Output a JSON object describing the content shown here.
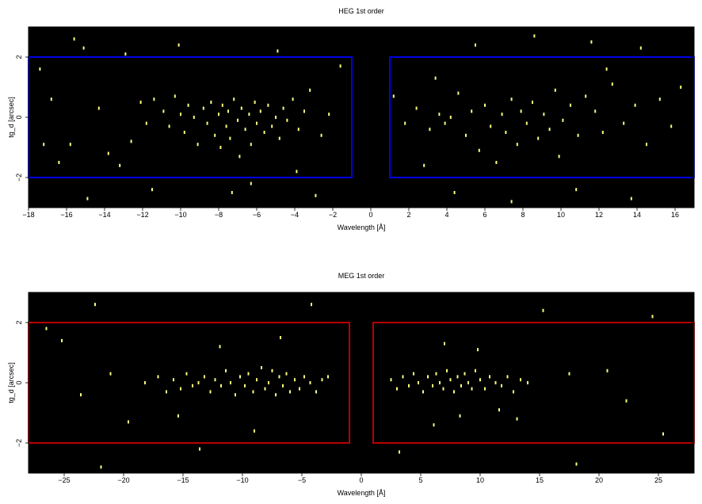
{
  "chart_data": [
    {
      "type": "scatter",
      "title": "HEG 1st order",
      "xlabel": "Wavelength [Å]",
      "ylabel": "tg_d [arcsec]",
      "xlim": [
        -18,
        17
      ],
      "ylim": [
        -3,
        3
      ],
      "xticks": [
        -18,
        -16,
        -14,
        -12,
        -10,
        -8,
        -6,
        -4,
        -2,
        0,
        2,
        4,
        6,
        8,
        10,
        12,
        14,
        16
      ],
      "xtick_labels": [
        "−18",
        "−16",
        "−14",
        "−12",
        "−10",
        "−8",
        "−6",
        "−4",
        "−2",
        "0",
        "2",
        "4",
        "6",
        "8",
        "10",
        "12",
        "14",
        "16"
      ],
      "yticks": [
        -2,
        0,
        2
      ],
      "ytick_labels": [
        "−2",
        "0",
        "2"
      ],
      "background": "#000000",
      "point_color": "#ffff80",
      "regions": [
        {
          "x": [
            -18,
            -1
          ],
          "y": [
            -2,
            2
          ],
          "color": "#0000ff"
        },
        {
          "x": [
            1,
            17
          ],
          "y": [
            -2,
            2
          ],
          "color": "#0000ff"
        }
      ],
      "points": [
        [
          -17.4,
          1.6
        ],
        [
          -16.8,
          0.6
        ],
        [
          -16.4,
          -1.5
        ],
        [
          -15.8,
          -0.9
        ],
        [
          -15.1,
          2.3
        ],
        [
          -14.3,
          0.3
        ],
        [
          -13.8,
          -1.2
        ],
        [
          -13.2,
          -1.6
        ],
        [
          -12.6,
          -0.8
        ],
        [
          -12.1,
          0.5
        ],
        [
          -11.8,
          -0.2
        ],
        [
          -11.4,
          0.6
        ],
        [
          -10.9,
          0.2
        ],
        [
          -10.6,
          -0.3
        ],
        [
          -10.3,
          0.7
        ],
        [
          -10.0,
          0.1
        ],
        [
          -9.8,
          -0.5
        ],
        [
          -9.6,
          0.4
        ],
        [
          -9.3,
          0.0
        ],
        [
          -9.1,
          -0.9
        ],
        [
          -8.8,
          0.3
        ],
        [
          -8.6,
          -0.2
        ],
        [
          -8.4,
          0.5
        ],
        [
          -8.2,
          -0.6
        ],
        [
          -8.0,
          0.1
        ],
        [
          -7.9,
          -1.0
        ],
        [
          -7.8,
          0.4
        ],
        [
          -7.6,
          -0.3
        ],
        [
          -7.5,
          0.2
        ],
        [
          -7.4,
          -0.7
        ],
        [
          -7.2,
          0.6
        ],
        [
          -7.0,
          -0.1
        ],
        [
          -6.9,
          -1.3
        ],
        [
          -6.8,
          0.3
        ],
        [
          -6.6,
          -0.4
        ],
        [
          -6.4,
          0.1
        ],
        [
          -6.3,
          -0.9
        ],
        [
          -6.1,
          0.5
        ],
        [
          -6.0,
          -0.2
        ],
        [
          -5.8,
          0.2
        ],
        [
          -5.6,
          -0.5
        ],
        [
          -5.4,
          0.4
        ],
        [
          -5.2,
          -0.3
        ],
        [
          -5.0,
          0.0
        ],
        [
          -4.8,
          -0.7
        ],
        [
          -4.6,
          0.3
        ],
        [
          -4.4,
          -0.1
        ],
        [
          -4.1,
          0.6
        ],
        [
          -3.8,
          -0.4
        ],
        [
          -3.5,
          0.2
        ],
        [
          -3.2,
          0.9
        ],
        [
          -2.6,
          -0.6
        ],
        [
          -2.2,
          0.1
        ],
        [
          -1.6,
          1.7
        ],
        [
          -12.9,
          2.1
        ],
        [
          -10.1,
          2.4
        ],
        [
          -7.3,
          -2.5
        ],
        [
          -4.9,
          2.2
        ],
        [
          -2.9,
          -2.6
        ],
        [
          -14.9,
          -2.7
        ],
        [
          -6.3,
          -2.2
        ],
        [
          -11.5,
          -2.4
        ],
        [
          -17.2,
          -0.9
        ],
        [
          -15.6,
          2.6
        ],
        [
          -3.9,
          -1.8
        ],
        [
          1.2,
          0.7
        ],
        [
          1.8,
          -0.2
        ],
        [
          2.4,
          0.3
        ],
        [
          3.1,
          -0.4
        ],
        [
          3.6,
          0.1
        ],
        [
          3.9,
          -0.2
        ],
        [
          4.2,
          0.0
        ],
        [
          4.6,
          0.8
        ],
        [
          5.0,
          -0.6
        ],
        [
          5.3,
          0.2
        ],
        [
          5.7,
          -1.1
        ],
        [
          6.0,
          0.4
        ],
        [
          6.3,
          -0.3
        ],
        [
          6.6,
          -1.5
        ],
        [
          6.9,
          0.1
        ],
        [
          7.1,
          -0.5
        ],
        [
          7.4,
          0.6
        ],
        [
          7.7,
          -0.9
        ],
        [
          7.9,
          0.2
        ],
        [
          8.2,
          -0.2
        ],
        [
          8.5,
          0.5
        ],
        [
          8.8,
          -0.7
        ],
        [
          9.1,
          0.1
        ],
        [
          9.4,
          -0.4
        ],
        [
          9.7,
          0.9
        ],
        [
          10.1,
          -0.1
        ],
        [
          10.5,
          0.4
        ],
        [
          10.9,
          -0.6
        ],
        [
          11.3,
          0.7
        ],
        [
          11.8,
          0.2
        ],
        [
          12.2,
          -0.5
        ],
        [
          12.7,
          1.1
        ],
        [
          13.3,
          -0.2
        ],
        [
          13.9,
          0.4
        ],
        [
          14.5,
          -0.9
        ],
        [
          15.2,
          0.6
        ],
        [
          15.8,
          -0.3
        ],
        [
          16.3,
          1.0
        ],
        [
          3.4,
          1.3
        ],
        [
          5.5,
          2.4
        ],
        [
          8.6,
          2.7
        ],
        [
          11.6,
          2.5
        ],
        [
          14.2,
          2.3
        ],
        [
          4.4,
          -2.5
        ],
        [
          7.4,
          -2.8
        ],
        [
          10.8,
          -2.4
        ],
        [
          13.7,
          -2.7
        ],
        [
          2.8,
          -1.6
        ],
        [
          9.9,
          -1.3
        ],
        [
          12.4,
          1.6
        ]
      ]
    },
    {
      "type": "scatter",
      "title": "MEG 1st order",
      "xlabel": "Wavelength [Å]",
      "ylabel": "tg_d [arcsec]",
      "xlim": [
        -28,
        28
      ],
      "ylim": [
        -3,
        3
      ],
      "xticks": [
        -25,
        -20,
        -15,
        -10,
        -5,
        0,
        5,
        10,
        15,
        20,
        25
      ],
      "xtick_labels": [
        "−25",
        "−20",
        "−15",
        "−10",
        "−5",
        "0",
        "5",
        "10",
        "15",
        "20",
        "25"
      ],
      "yticks": [
        -2,
        0,
        2
      ],
      "ytick_labels": [
        "−2",
        "0",
        "2"
      ],
      "background": "#000000",
      "point_color": "#ffff80",
      "regions": [
        {
          "x": [
            -28,
            -1
          ],
          "y": [
            -2,
            2
          ],
          "color": "#cc0000"
        },
        {
          "x": [
            1,
            28
          ],
          "y": [
            -2,
            2
          ],
          "color": "#cc0000"
        }
      ],
      "points": [
        [
          -26.5,
          1.8
        ],
        [
          -25.2,
          1.4
        ],
        [
          -23.6,
          -0.4
        ],
        [
          -22.4,
          2.6
        ],
        [
          -21.1,
          0.3
        ],
        [
          -19.6,
          -1.3
        ],
        [
          -18.2,
          0.0
        ],
        [
          -17.1,
          0.2
        ],
        [
          -16.4,
          -0.3
        ],
        [
          -15.8,
          0.1
        ],
        [
          -15.2,
          -0.2
        ],
        [
          -14.7,
          0.3
        ],
        [
          -14.2,
          -0.1
        ],
        [
          -13.7,
          0.0
        ],
        [
          -13.2,
          0.2
        ],
        [
          -12.7,
          -0.3
        ],
        [
          -12.3,
          0.1
        ],
        [
          -11.8,
          -0.1
        ],
        [
          -11.4,
          0.4
        ],
        [
          -11.0,
          0.0
        ],
        [
          -10.6,
          -0.4
        ],
        [
          -10.2,
          0.2
        ],
        [
          -9.8,
          -0.1
        ],
        [
          -9.5,
          0.3
        ],
        [
          -9.1,
          -0.3
        ],
        [
          -8.8,
          0.1
        ],
        [
          -8.4,
          0.5
        ],
        [
          -8.1,
          -0.2
        ],
        [
          -7.8,
          0.0
        ],
        [
          -7.5,
          0.4
        ],
        [
          -7.2,
          -0.4
        ],
        [
          -6.9,
          0.2
        ],
        [
          -6.6,
          -0.1
        ],
        [
          -6.3,
          0.3
        ],
        [
          -6.0,
          -0.3
        ],
        [
          -5.6,
          0.1
        ],
        [
          -5.2,
          -0.2
        ],
        [
          -4.8,
          0.2
        ],
        [
          -4.3,
          0.0
        ],
        [
          -3.8,
          -0.3
        ],
        [
          -3.3,
          0.1
        ],
        [
          -2.8,
          0.2
        ],
        [
          -11.9,
          1.2
        ],
        [
          -9.0,
          -1.6
        ],
        [
          -6.8,
          1.5
        ],
        [
          -15.4,
          -1.1
        ],
        [
          -4.2,
          2.6
        ],
        [
          -13.6,
          -2.2
        ],
        [
          -21.9,
          -2.8
        ],
        [
          2.5,
          0.1
        ],
        [
          3.0,
          -0.2
        ],
        [
          3.5,
          0.2
        ],
        [
          4.0,
          -0.1
        ],
        [
          4.4,
          0.3
        ],
        [
          4.8,
          0.0
        ],
        [
          5.2,
          -0.3
        ],
        [
          5.6,
          0.2
        ],
        [
          6.0,
          -0.1
        ],
        [
          6.3,
          0.3
        ],
        [
          6.6,
          0.0
        ],
        [
          6.9,
          -0.2
        ],
        [
          7.2,
          0.4
        ],
        [
          7.5,
          0.1
        ],
        [
          7.8,
          -0.3
        ],
        [
          8.1,
          0.2
        ],
        [
          8.4,
          -0.1
        ],
        [
          8.7,
          0.3
        ],
        [
          9.0,
          0.0
        ],
        [
          9.3,
          -0.2
        ],
        [
          9.6,
          0.4
        ],
        [
          10.0,
          0.1
        ],
        [
          10.4,
          -0.2
        ],
        [
          10.8,
          0.2
        ],
        [
          11.3,
          0.0
        ],
        [
          11.8,
          -0.1
        ],
        [
          12.3,
          0.2
        ],
        [
          12.8,
          -0.3
        ],
        [
          13.4,
          0.1
        ],
        [
          14.0,
          0.0
        ],
        [
          7.0,
          1.3
        ],
        [
          8.3,
          -1.1
        ],
        [
          9.8,
          1.1
        ],
        [
          6.1,
          -1.4
        ],
        [
          11.6,
          -0.9
        ],
        [
          17.5,
          0.3
        ],
        [
          20.7,
          0.4
        ],
        [
          22.3,
          -0.6
        ],
        [
          25.4,
          -1.7
        ],
        [
          24.5,
          2.2
        ],
        [
          15.3,
          2.4
        ],
        [
          18.1,
          -2.7
        ],
        [
          3.2,
          -2.3
        ],
        [
          13.1,
          -1.2
        ]
      ]
    }
  ]
}
